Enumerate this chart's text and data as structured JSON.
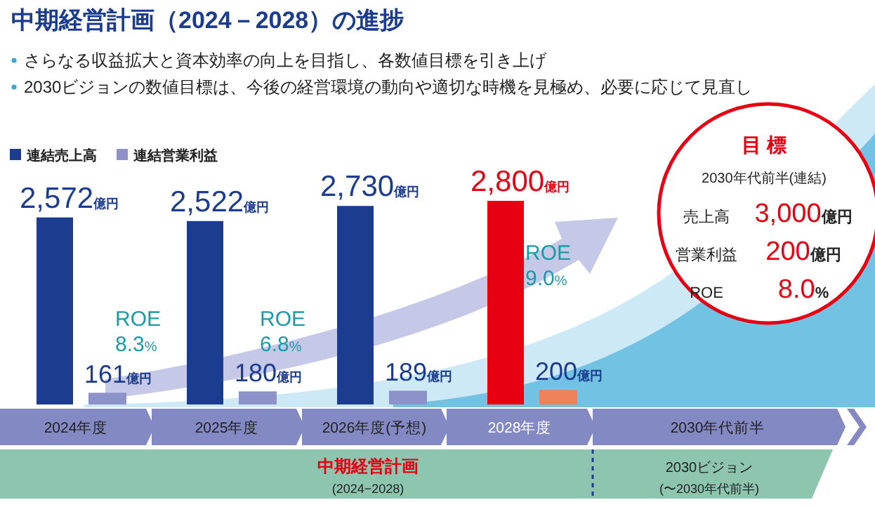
{
  "chart_data": {
    "type": "bar",
    "title": "中期経営計画（2024－2028）の進捗",
    "subtitle": "さらなる収益拡大と資本効率の向上を目指し、各数値目標を引き上げ\n2030ビジョンの数値目標は、今後の経営環境の動向や適切な時機を見極め、必要に応じて見直し",
    "categories": [
      "2024年度",
      "2025年度",
      "2026年度(予想)",
      "2028年度",
      "2030年代前半"
    ],
    "series": [
      {
        "name": "連結売上高",
        "color": "#1b3c8f",
        "colors": [
          "#1b3c8f",
          "#1b3c8f",
          "#1b3c8f",
          "#e60012",
          null
        ],
        "values": [
          2572,
          2522,
          2730,
          2800,
          null
        ],
        "value_labels": [
          "2,572億円",
          "2,522億円",
          "2,730億円",
          "2,800億円",
          null
        ]
      },
      {
        "name": "連結営業利益",
        "color": "#8d92c8",
        "colors": [
          "#8d92c8",
          "#8d92c8",
          "#8d92c8",
          "#f08259",
          null
        ],
        "values": [
          161,
          180,
          189,
          200,
          null
        ],
        "value_labels": [
          "161億円",
          "180億円",
          "189億円",
          "200億円",
          null
        ]
      }
    ],
    "legend": "top left",
    "annotations": [
      "ROE 8.3%",
      "ROE 6.8%",
      "ROE 9.0%",
      "目 標",
      "2030年代前半(連結)",
      "売上高 3,000億円",
      "営業利益 200億円",
      "ROE 8.0%",
      "中期経営計画",
      "(2024−2028)",
      "2030ビジョン",
      "(〜2030年代前半)"
    ]
  }
}
